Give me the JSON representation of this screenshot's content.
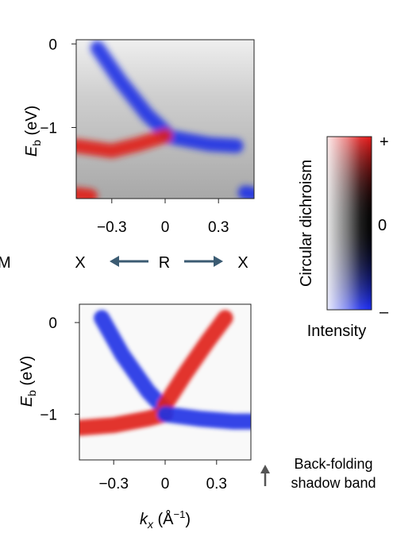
{
  "chart_data": [
    {
      "type": "heatmap",
      "title": "",
      "xlabel": "",
      "ylabel": "E_b (eV)",
      "ylabel_main": "E",
      "ylabel_sub": "b",
      "ylabel_unit": " (eV)",
      "x_ticks": [
        {
          "value": -0.3,
          "label": "−0.3"
        },
        {
          "value": 0,
          "label": "0"
        },
        {
          "value": 0.3,
          "label": "0.3"
        }
      ],
      "y_ticks": [
        {
          "value": 0,
          "label": "0"
        },
        {
          "value": -1,
          "label": "−1"
        }
      ],
      "xlim": [
        -0.5,
        0.5
      ],
      "ylim": [
        -1.85,
        0.05
      ],
      "bands": [
        {
          "color": "blue",
          "points": [
            [
              -0.38,
              -0.05
            ],
            [
              -0.25,
              -0.45
            ],
            [
              -0.1,
              -0.85
            ],
            [
              0.0,
              -1.05
            ]
          ]
        },
        {
          "color": "blue",
          "points": [
            [
              0.0,
              -1.1
            ],
            [
              0.12,
              -1.15
            ],
            [
              0.25,
              -1.2
            ],
            [
              0.4,
              -1.22
            ]
          ]
        },
        {
          "color": "red",
          "points": [
            [
              -0.5,
              -1.22
            ],
            [
              -0.3,
              -1.28
            ],
            [
              -0.15,
              -1.2
            ],
            [
              0.0,
              -1.1
            ]
          ]
        },
        {
          "color": "red",
          "points": [
            [
              -0.5,
              -1.8
            ],
            [
              -0.42,
              -1.82
            ]
          ]
        },
        {
          "color": "blue",
          "points": [
            [
              0.45,
              -1.78
            ],
            [
              0.5,
              -1.8
            ]
          ]
        }
      ],
      "path_labels": {
        "left_edge": "M",
        "left": "X",
        "center": "R",
        "right": "X"
      }
    },
    {
      "type": "heatmap",
      "title": "",
      "xlabel": "k_x (Å⁻¹)",
      "xlabel_main": "k",
      "xlabel_sub": "x",
      "xlabel_unit": " (Å",
      "xlabel_sup": "−1",
      "xlabel_close": ")",
      "ylabel": "E_b (eV)",
      "ylabel_main": "E",
      "ylabel_sub": "b",
      "ylabel_unit": " (eV)",
      "x_ticks": [
        {
          "value": -0.3,
          "label": "−0.3"
        },
        {
          "value": 0,
          "label": "0"
        },
        {
          "value": 0.3,
          "label": "0.3"
        }
      ],
      "y_ticks": [
        {
          "value": 0,
          "label": "0"
        },
        {
          "value": -1,
          "label": "−1"
        }
      ],
      "xlim": [
        -0.5,
        0.5
      ],
      "ylim": [
        -1.5,
        0.2
      ],
      "bands": [
        {
          "color": "blue",
          "points": [
            [
              -0.37,
              0.05
            ],
            [
              -0.25,
              -0.35
            ],
            [
              -0.1,
              -0.75
            ],
            [
              0.0,
              -0.95
            ]
          ]
        },
        {
          "color": "red",
          "points": [
            [
              0.0,
              -0.9
            ],
            [
              0.12,
              -0.55
            ],
            [
              0.25,
              -0.2
            ],
            [
              0.35,
              0.05
            ]
          ]
        },
        {
          "color": "red",
          "points": [
            [
              -0.5,
              -1.15
            ],
            [
              -0.3,
              -1.12
            ],
            [
              -0.1,
              -1.05
            ],
            [
              0.0,
              -1.0
            ]
          ]
        },
        {
          "color": "blue",
          "points": [
            [
              0.0,
              -1.0
            ],
            [
              0.2,
              -1.05
            ],
            [
              0.4,
              -1.08
            ],
            [
              0.5,
              -1.08
            ]
          ]
        }
      ]
    }
  ],
  "colorbar": {
    "label": "Circular dichroism",
    "xlabel": "Intensity",
    "tick_top": "+",
    "tick_mid": "0",
    "tick_bottom": "–",
    "colors": {
      "low": "#d8d8d8",
      "mid": "#000000",
      "high": "#e0201a",
      "neg": "#1e32e6"
    }
  },
  "annotation": {
    "line1": "Back-folding",
    "line2": "shadow band"
  }
}
